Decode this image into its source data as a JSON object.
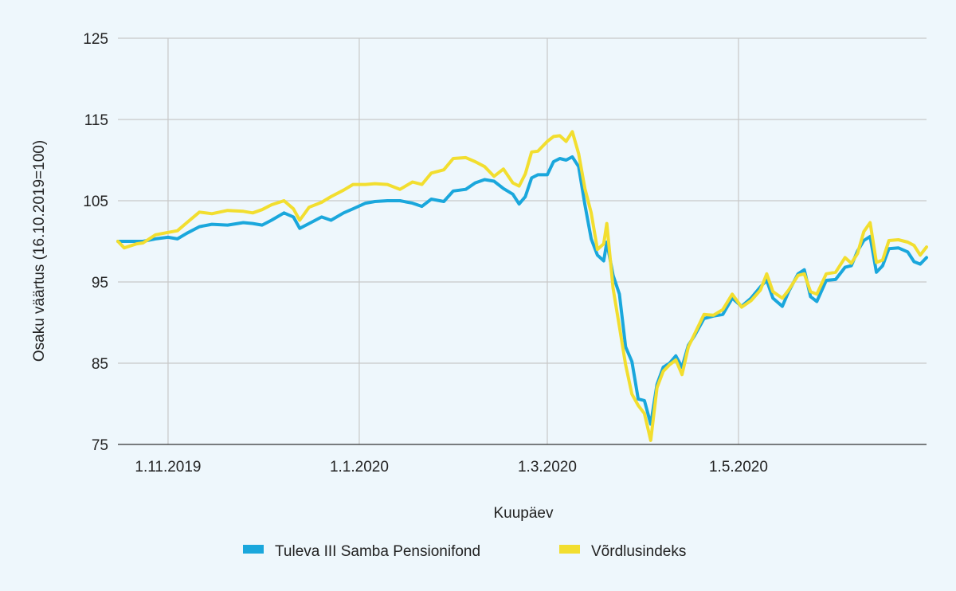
{
  "chart_data": {
    "type": "line",
    "xlabel": "Kuupäev",
    "ylabel": "Osaku väärtus (16.10.2019=100)",
    "ylim": [
      75,
      125
    ],
    "yticks": [
      75,
      85,
      95,
      105,
      115,
      125
    ],
    "xlim": [
      "2019-10-16",
      "2020-06-30"
    ],
    "xticks": [
      {
        "date": "2019-11-01",
        "label": "1.11.2019"
      },
      {
        "date": "2020-01-01",
        "label": "1.1.2020"
      },
      {
        "date": "2020-03-01",
        "label": "1.3.2020"
      },
      {
        "date": "2020-05-01",
        "label": "1.5.2020"
      }
    ],
    "grid": true,
    "legend_position": "bottom",
    "series": [
      {
        "name": "Tuleva III Samba Pensionifond",
        "color": "#1aa7dc",
        "points": [
          [
            "2019-10-16",
            100.0
          ],
          [
            "2019-10-18",
            100.0
          ],
          [
            "2019-10-22",
            100.0
          ],
          [
            "2019-10-24",
            100.0
          ],
          [
            "2019-10-28",
            100.3
          ],
          [
            "2019-11-01",
            100.5
          ],
          [
            "2019-11-04",
            100.3
          ],
          [
            "2019-11-07",
            101.0
          ],
          [
            "2019-11-11",
            101.8
          ],
          [
            "2019-11-15",
            102.1
          ],
          [
            "2019-11-20",
            102.0
          ],
          [
            "2019-11-25",
            102.3
          ],
          [
            "2019-11-28",
            102.2
          ],
          [
            "2019-12-01",
            102.0
          ],
          [
            "2019-12-04",
            102.6
          ],
          [
            "2019-12-08",
            103.5
          ],
          [
            "2019-12-11",
            103.0
          ],
          [
            "2019-12-13",
            101.6
          ],
          [
            "2019-12-16",
            102.2
          ],
          [
            "2019-12-20",
            103.0
          ],
          [
            "2019-12-23",
            102.6
          ],
          [
            "2019-12-27",
            103.5
          ],
          [
            "2019-12-30",
            104.0
          ],
          [
            "2020-01-03",
            104.7
          ],
          [
            "2020-01-06",
            104.9
          ],
          [
            "2020-01-10",
            105.0
          ],
          [
            "2020-01-14",
            105.0
          ],
          [
            "2020-01-18",
            104.7
          ],
          [
            "2020-01-21",
            104.3
          ],
          [
            "2020-01-24",
            105.2
          ],
          [
            "2020-01-28",
            104.9
          ],
          [
            "2020-01-31",
            106.2
          ],
          [
            "2020-02-04",
            106.4
          ],
          [
            "2020-02-07",
            107.2
          ],
          [
            "2020-02-10",
            107.6
          ],
          [
            "2020-02-13",
            107.4
          ],
          [
            "2020-02-16",
            106.5
          ],
          [
            "2020-02-19",
            105.8
          ],
          [
            "2020-02-21",
            104.6
          ],
          [
            "2020-02-23",
            105.5
          ],
          [
            "2020-02-25",
            107.8
          ],
          [
            "2020-02-27",
            108.2
          ],
          [
            "2020-03-01",
            108.2
          ],
          [
            "2020-03-03",
            109.8
          ],
          [
            "2020-03-05",
            110.2
          ],
          [
            "2020-03-07",
            110.0
          ],
          [
            "2020-03-09",
            110.4
          ],
          [
            "2020-03-11",
            109.2
          ],
          [
            "2020-03-13",
            104.5
          ],
          [
            "2020-03-15",
            100.3
          ],
          [
            "2020-03-17",
            98.3
          ],
          [
            "2020-03-19",
            97.6
          ],
          [
            "2020-03-20",
            99.9
          ],
          [
            "2020-03-22",
            95.8
          ],
          [
            "2020-03-24",
            93.5
          ],
          [
            "2020-03-26",
            87.0
          ],
          [
            "2020-03-28",
            85.2
          ],
          [
            "2020-03-30",
            80.6
          ],
          [
            "2020-04-01",
            80.4
          ],
          [
            "2020-04-03",
            77.5
          ],
          [
            "2020-04-05",
            82.4
          ],
          [
            "2020-04-07",
            84.5
          ],
          [
            "2020-04-09",
            85.0
          ],
          [
            "2020-04-11",
            85.9
          ],
          [
            "2020-04-13",
            84.5
          ],
          [
            "2020-04-15",
            87.2
          ],
          [
            "2020-04-17",
            88.4
          ],
          [
            "2020-04-20",
            90.5
          ],
          [
            "2020-04-23",
            90.8
          ],
          [
            "2020-04-26",
            91.0
          ],
          [
            "2020-04-29",
            93.0
          ],
          [
            "2020-05-02",
            92.0
          ],
          [
            "2020-05-05",
            93.0
          ],
          [
            "2020-05-08",
            94.4
          ],
          [
            "2020-05-10",
            95.2
          ],
          [
            "2020-05-12",
            93.0
          ],
          [
            "2020-05-15",
            92.0
          ],
          [
            "2020-05-17",
            93.8
          ],
          [
            "2020-05-20",
            96.0
          ],
          [
            "2020-05-22",
            96.5
          ],
          [
            "2020-05-24",
            93.2
          ],
          [
            "2020-05-26",
            92.6
          ],
          [
            "2020-05-29",
            95.2
          ],
          [
            "2020-06-01",
            95.3
          ],
          [
            "2020-06-04",
            96.8
          ],
          [
            "2020-06-06",
            97.0
          ],
          [
            "2020-06-08",
            98.8
          ],
          [
            "2020-06-10",
            100.1
          ],
          [
            "2020-06-12",
            100.6
          ],
          [
            "2020-06-14",
            96.2
          ],
          [
            "2020-06-16",
            97.0
          ],
          [
            "2020-06-18",
            99.1
          ],
          [
            "2020-06-21",
            99.2
          ],
          [
            "2020-06-24",
            98.7
          ],
          [
            "2020-06-26",
            97.5
          ],
          [
            "2020-06-28",
            97.2
          ],
          [
            "2020-06-30",
            98.0
          ]
        ]
      },
      {
        "name": "Võrdlusindeks",
        "color": "#f2de2f",
        "points": [
          [
            "2019-10-16",
            100.0
          ],
          [
            "2019-10-18",
            99.2
          ],
          [
            "2019-10-22",
            99.7
          ],
          [
            "2019-10-24",
            99.8
          ],
          [
            "2019-10-28",
            100.8
          ],
          [
            "2019-11-01",
            101.1
          ],
          [
            "2019-11-04",
            101.3
          ],
          [
            "2019-11-07",
            102.3
          ],
          [
            "2019-11-11",
            103.6
          ],
          [
            "2019-11-15",
            103.4
          ],
          [
            "2019-11-20",
            103.8
          ],
          [
            "2019-11-25",
            103.7
          ],
          [
            "2019-11-28",
            103.5
          ],
          [
            "2019-12-01",
            103.9
          ],
          [
            "2019-12-04",
            104.5
          ],
          [
            "2019-12-08",
            105.0
          ],
          [
            "2019-12-11",
            104.0
          ],
          [
            "2019-12-13",
            102.6
          ],
          [
            "2019-12-16",
            104.2
          ],
          [
            "2019-12-20",
            104.8
          ],
          [
            "2019-12-23",
            105.5
          ],
          [
            "2019-12-27",
            106.3
          ],
          [
            "2019-12-30",
            107.0
          ],
          [
            "2020-01-03",
            107.0
          ],
          [
            "2020-01-06",
            107.1
          ],
          [
            "2020-01-10",
            107.0
          ],
          [
            "2020-01-14",
            106.4
          ],
          [
            "2020-01-18",
            107.3
          ],
          [
            "2020-01-21",
            107.0
          ],
          [
            "2020-01-24",
            108.4
          ],
          [
            "2020-01-28",
            108.8
          ],
          [
            "2020-01-31",
            110.2
          ],
          [
            "2020-02-04",
            110.3
          ],
          [
            "2020-02-07",
            109.8
          ],
          [
            "2020-02-10",
            109.2
          ],
          [
            "2020-02-13",
            108.0
          ],
          [
            "2020-02-16",
            108.9
          ],
          [
            "2020-02-19",
            107.2
          ],
          [
            "2020-02-21",
            106.8
          ],
          [
            "2020-02-23",
            108.3
          ],
          [
            "2020-02-25",
            111.0
          ],
          [
            "2020-02-27",
            111.1
          ],
          [
            "2020-03-01",
            112.3
          ],
          [
            "2020-03-03",
            112.9
          ],
          [
            "2020-03-05",
            113.0
          ],
          [
            "2020-03-07",
            112.3
          ],
          [
            "2020-03-09",
            113.5
          ],
          [
            "2020-03-11",
            110.8
          ],
          [
            "2020-03-13",
            106.5
          ],
          [
            "2020-03-15",
            103.5
          ],
          [
            "2020-03-17",
            99.0
          ],
          [
            "2020-03-19",
            99.7
          ],
          [
            "2020-03-20",
            102.2
          ],
          [
            "2020-03-22",
            94.2
          ],
          [
            "2020-03-24",
            89.5
          ],
          [
            "2020-03-26",
            84.8
          ],
          [
            "2020-03-28",
            81.2
          ],
          [
            "2020-03-30",
            79.8
          ],
          [
            "2020-04-01",
            78.8
          ],
          [
            "2020-04-03",
            75.5
          ],
          [
            "2020-04-05",
            82.0
          ],
          [
            "2020-04-07",
            84.0
          ],
          [
            "2020-04-09",
            84.8
          ],
          [
            "2020-04-11",
            85.4
          ],
          [
            "2020-04-13",
            83.6
          ],
          [
            "2020-04-15",
            87.0
          ],
          [
            "2020-04-17",
            88.6
          ],
          [
            "2020-04-20",
            91.0
          ],
          [
            "2020-04-23",
            90.9
          ],
          [
            "2020-04-26",
            91.6
          ],
          [
            "2020-04-29",
            93.5
          ],
          [
            "2020-05-02",
            91.9
          ],
          [
            "2020-05-05",
            92.7
          ],
          [
            "2020-05-08",
            94.0
          ],
          [
            "2020-05-10",
            96.0
          ],
          [
            "2020-05-12",
            93.8
          ],
          [
            "2020-05-15",
            93.0
          ],
          [
            "2020-05-17",
            94.0
          ],
          [
            "2020-05-20",
            95.8
          ],
          [
            "2020-05-22",
            96.0
          ],
          [
            "2020-05-24",
            93.8
          ],
          [
            "2020-05-26",
            93.5
          ],
          [
            "2020-05-29",
            96.0
          ],
          [
            "2020-06-01",
            96.2
          ],
          [
            "2020-06-04",
            98.0
          ],
          [
            "2020-06-06",
            97.3
          ],
          [
            "2020-06-08",
            98.5
          ],
          [
            "2020-06-10",
            101.2
          ],
          [
            "2020-06-12",
            102.3
          ],
          [
            "2020-06-14",
            97.4
          ],
          [
            "2020-06-16",
            97.7
          ],
          [
            "2020-06-18",
            100.1
          ],
          [
            "2020-06-21",
            100.2
          ],
          [
            "2020-06-24",
            99.9
          ],
          [
            "2020-06-26",
            99.5
          ],
          [
            "2020-06-28",
            98.3
          ],
          [
            "2020-06-30",
            99.3
          ]
        ]
      }
    ]
  }
}
